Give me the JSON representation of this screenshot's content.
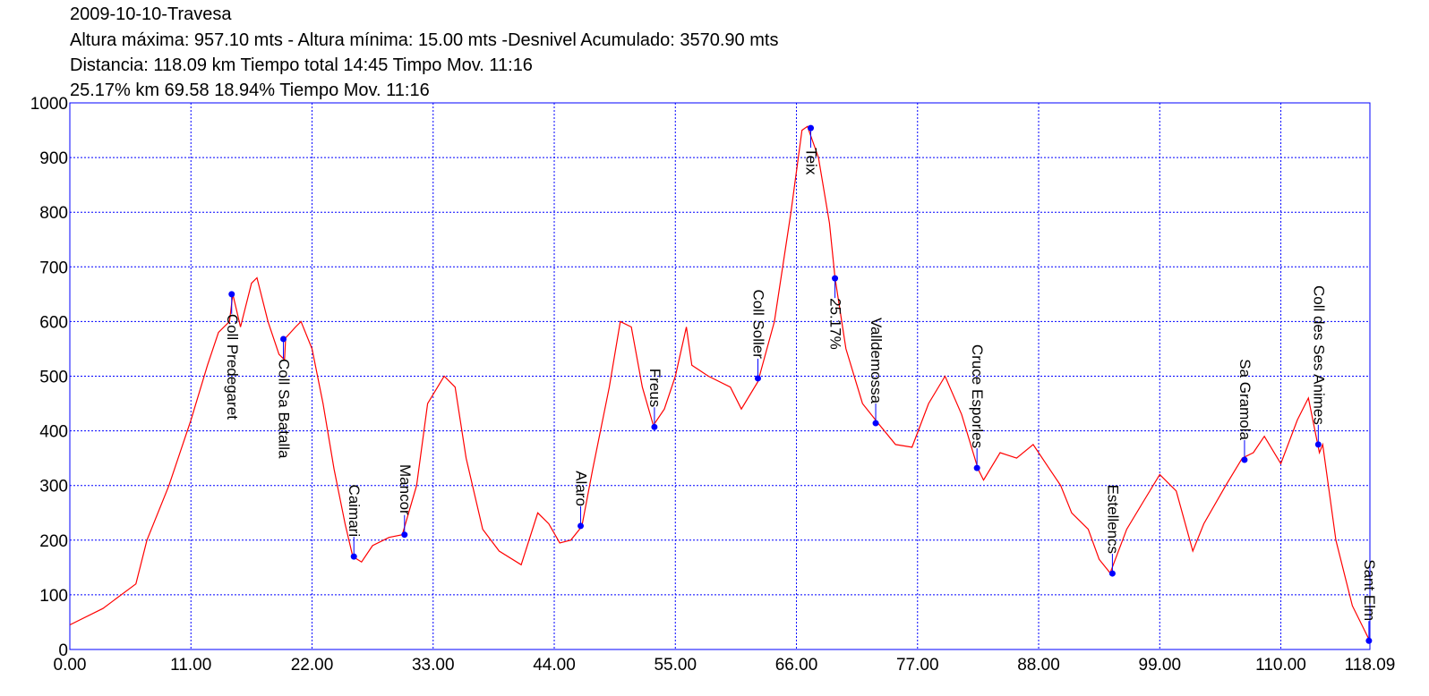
{
  "chart_data": {
    "type": "line",
    "title": "2009-10-10-Travesa",
    "subtitle_lines": [
      "Altura máxima: 957.10 mts - Altura mínima: 15.00 mts -Desnivel Acumulado: 3570.90 mts",
      "Distancia: 118.09 km  Tiempo total 14:45 Timpo Mov. 11:16",
      "25.17% km 69.58  18.94%  Tiempo Mov. 11:16"
    ],
    "x": [
      0,
      3,
      6,
      7,
      9,
      11,
      12.5,
      13.5,
      14.5,
      14.8,
      15.5,
      16.5,
      17,
      18,
      19,
      19.5,
      19.6,
      20.5,
      21,
      22,
      23,
      24,
      25,
      25.7,
      26.5,
      27.5,
      29,
      30.2,
      31.5,
      32.5,
      34,
      35,
      36,
      37.5,
      39,
      41,
      42.5,
      43.5,
      44.5,
      45.5,
      46.5,
      47.5,
      49,
      50,
      51,
      52,
      53,
      54,
      55,
      56,
      56.5,
      58,
      60,
      61,
      62.5,
      64,
      65.5,
      66.5,
      67,
      68,
      69,
      69.5,
      70.5,
      72,
      73.5,
      75,
      76.5,
      78,
      79.5,
      81,
      82.5,
      83,
      84.5,
      86,
      87.5,
      89,
      90,
      91,
      92.5,
      93.5,
      94.5,
      96,
      97.5,
      99,
      100.5,
      102,
      103,
      105,
      106.5,
      107.5,
      108.5,
      110,
      111.5,
      112.5,
      113.5,
      113.8,
      115,
      116.5,
      118.09
    ],
    "series": [
      {
        "color": "#ff0000",
        "values": [
          45,
          75,
          120,
          200,
          300,
          420,
          520,
          580,
          600,
          650,
          590,
          670,
          680,
          600,
          540,
          530,
          570,
          590,
          600,
          550,
          450,
          330,
          230,
          170,
          160,
          190,
          205,
          210,
          300,
          450,
          500,
          480,
          350,
          220,
          180,
          155,
          250,
          230,
          195,
          200,
          225,
          330,
          480,
          600,
          590,
          480,
          410,
          440,
          500,
          590,
          520,
          500,
          480,
          440,
          490,
          600,
          800,
          950,
          957,
          900,
          780,
          680,
          550,
          450,
          412,
          375,
          370,
          450,
          500,
          430,
          330,
          310,
          360,
          350,
          375,
          330,
          300,
          250,
          220,
          165,
          140,
          220,
          270,
          320,
          290,
          180,
          230,
          300,
          350,
          360,
          390,
          340,
          420,
          460,
          360,
          375,
          200,
          80,
          15
        ]
      }
    ],
    "waypoints": [
      {
        "name": "Coll Predegaret",
        "km": 14.7,
        "elevation": 650
      },
      {
        "name": "Coll Sa Batalla",
        "km": 19.4,
        "elevation": 568
      },
      {
        "name": "Caimari",
        "km": 25.8,
        "elevation": 170
      },
      {
        "name": "Mancor",
        "km": 30.4,
        "elevation": 210
      },
      {
        "name": "Alaro",
        "km": 46.4,
        "elevation": 226
      },
      {
        "name": "Freus",
        "km": 53.1,
        "elevation": 407
      },
      {
        "name": "Coll Soller",
        "km": 62.5,
        "elevation": 496
      },
      {
        "name": "Teix",
        "km": 67.3,
        "elevation": 954
      },
      {
        "name": "25.17%",
        "km": 69.5,
        "elevation": 679
      },
      {
        "name": "Valldemossa",
        "km": 73.2,
        "elevation": 414
      },
      {
        "name": "Cruce Esporles",
        "km": 82.4,
        "elevation": 332
      },
      {
        "name": "Estellencs",
        "km": 94.7,
        "elevation": 139
      },
      {
        "name": "Sa Gramola",
        "km": 106.7,
        "elevation": 347
      },
      {
        "name": "Coll des Ses Animes",
        "km": 113.4,
        "elevation": 375
      },
      {
        "name": "Sant Elm",
        "km": 118.0,
        "elevation": 16
      }
    ],
    "waypoint_color": "#0000ff",
    "xlim": [
      0,
      118.09
    ],
    "ylim": [
      0,
      1000
    ],
    "xticks": [
      {
        "value": 0,
        "label": "0.00"
      },
      {
        "value": 11,
        "label": "11.00"
      },
      {
        "value": 22,
        "label": "22.00"
      },
      {
        "value": 33,
        "label": "33.00"
      },
      {
        "value": 44,
        "label": "44.00"
      },
      {
        "value": 55,
        "label": "55.00"
      },
      {
        "value": 66,
        "label": "66.00"
      },
      {
        "value": 77,
        "label": "77.00"
      },
      {
        "value": 88,
        "label": "88.00"
      },
      {
        "value": 99,
        "label": "99.00"
      },
      {
        "value": 110,
        "label": "110.00"
      },
      {
        "value": 118.09,
        "label": "118.09"
      }
    ],
    "yticks": [
      0,
      100,
      200,
      300,
      400,
      500,
      600,
      700,
      800,
      900,
      1000
    ],
    "grid": true,
    "grid_color": "#0000ff"
  }
}
